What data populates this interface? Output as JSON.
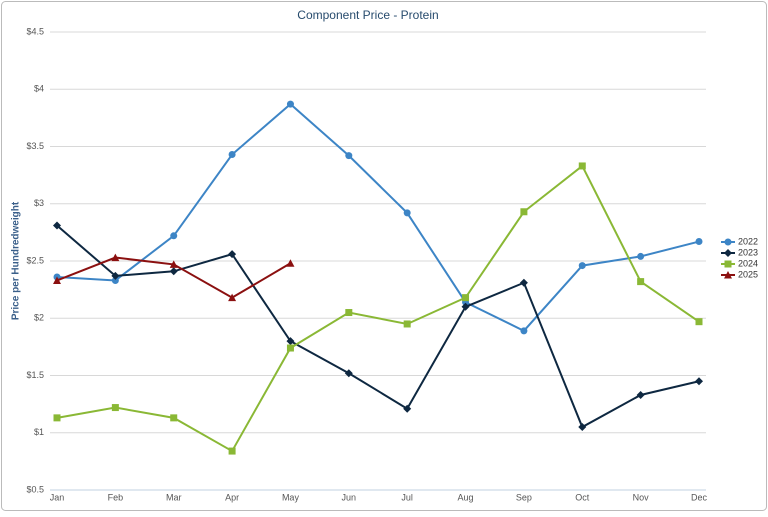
{
  "chart_data": {
    "type": "line",
    "title": "Component Price - Protein",
    "y_label": "Price per Hundredweight",
    "categories": [
      "Jan",
      "Feb",
      "Mar",
      "Apr",
      "May",
      "Jun",
      "Jul",
      "Aug",
      "Sep",
      "Oct",
      "Nov",
      "Dec"
    ],
    "series": [
      {
        "name": "2022",
        "color": "#3d85c6",
        "marker": "circle",
        "values": [
          2.36,
          2.33,
          2.72,
          3.43,
          3.87,
          3.42,
          2.92,
          2.14,
          1.89,
          2.46,
          2.54,
          2.67
        ]
      },
      {
        "name": "2023",
        "color": "#0e2841",
        "marker": "diamond",
        "values": [
          2.81,
          2.37,
          2.41,
          2.56,
          1.8,
          1.52,
          1.21,
          2.1,
          2.31,
          1.05,
          1.33,
          1.45
        ]
      },
      {
        "name": "2024",
        "color": "#8ab835",
        "marker": "square",
        "values": [
          1.13,
          1.22,
          1.13,
          0.84,
          1.74,
          2.05,
          1.95,
          2.18,
          2.93,
          3.33,
          2.32,
          1.97
        ]
      },
      {
        "name": "2025",
        "color": "#8b1010",
        "marker": "triangle",
        "values": [
          2.33,
          2.53,
          2.47,
          2.18,
          2.48,
          null,
          null,
          null,
          null,
          null,
          null,
          null
        ]
      }
    ],
    "ylim": [
      0.5,
      4.5
    ],
    "yticks": [
      {
        "value": 0.5,
        "label": "$0.5"
      },
      {
        "value": 1,
        "label": "$1"
      },
      {
        "value": 1.5,
        "label": "$1.5"
      },
      {
        "value": 2,
        "label": "$2"
      },
      {
        "value": 2.5,
        "label": "$2.5"
      },
      {
        "value": 3,
        "label": "$3"
      },
      {
        "value": 3.5,
        "label": "$3.5"
      },
      {
        "value": 4,
        "label": "$4"
      },
      {
        "value": 4.5,
        "label": "$4.5"
      }
    ],
    "grid": true,
    "legend": "right"
  }
}
